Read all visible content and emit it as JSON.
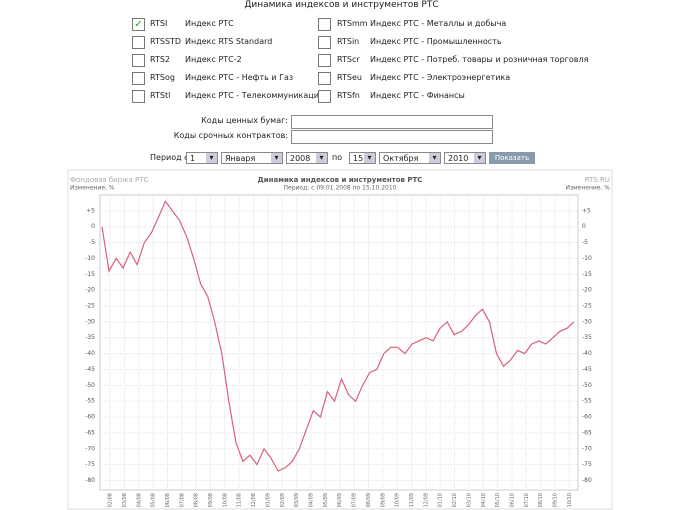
{
  "header": {
    "title": "Динамика индексов и инструментов РТС"
  },
  "form": {
    "checkboxes": [
      {
        "code": "RTSI",
        "name": "Индекс РТС",
        "checked": true
      },
      {
        "code": "RTSSTD",
        "name": "Индекс RTS Standard",
        "checked": false
      },
      {
        "code": "RTS2",
        "name": "Индекс РТС-2",
        "checked": false
      },
      {
        "code": "RTSog",
        "name": "Индекс РТС - Нефть и Газ",
        "checked": false
      },
      {
        "code": "RTStl",
        "name": "Индекс РТС - Телекоммуникации",
        "checked": false
      },
      {
        "code": "RTSmm",
        "name": "Индекс РТС - Металлы и добыча",
        "checked": false
      },
      {
        "code": "RTSin",
        "name": "Индекс РТС - Промышленность",
        "checked": false
      },
      {
        "code": "RTScr",
        "name": "Индекс РТС - Потреб. товары и розничная торговля",
        "checked": false
      },
      {
        "code": "RTSeu",
        "name": "Индекс РТС - Электроэнергетика",
        "checked": false
      },
      {
        "code": "RTSfn",
        "name": "Индекс РТС - Финансы",
        "checked": false
      }
    ],
    "securities_label": "Коды ценных бумаг:",
    "contracts_label": "Коды срочных контрактов:",
    "period_label": "Период с",
    "from": {
      "day": "1",
      "month": "Января",
      "year": "2008"
    },
    "to_label": "по",
    "to": {
      "day": "15",
      "month": "Октября",
      "year": "2010"
    },
    "button": "Показать"
  },
  "chart_data": {
    "type": "line",
    "source": "Фондовая биржа РТС",
    "title": "Динамика индексов и инструментов РТС",
    "site": "RTS.RU",
    "y_label": "Изменение, %",
    "subtitle": "Период: с 09.01.2008 по 15.10.2010",
    "ylim": [
      -83,
      10
    ],
    "yticks": [
      {
        "value": 5,
        "label": "+5"
      },
      0,
      -5,
      -10,
      -15,
      -20,
      -25,
      -30,
      -35,
      -40,
      -45,
      -50,
      -55,
      -60,
      -65,
      -70,
      -75,
      -80
    ],
    "month_labels": [
      "02/08",
      "03/08",
      "04/08",
      "05/08",
      "06/08",
      "07/08",
      "08/08",
      "09/08",
      "10/08",
      "11/08",
      "12/08",
      "01/09",
      "02/09",
      "03/09",
      "04/09",
      "05/09",
      "06/09",
      "07/09",
      "08/09",
      "09/09",
      "10/09",
      "11/09",
      "12/09",
      "01/10",
      "02/10",
      "03/10",
      "04/10",
      "05/10",
      "06/10",
      "07/10",
      "08/10",
      "09/10",
      "10/10"
    ],
    "grid": true,
    "series": [
      {
        "name": "RTSI",
        "color": "#d9607a",
        "values": [
          0,
          -14,
          -10,
          -13,
          -8,
          -12,
          -5,
          -2,
          3,
          8,
          5,
          2,
          -3,
          -10,
          -18,
          -22,
          -30,
          -40,
          -55,
          -68,
          -74,
          -72,
          -75,
          -70,
          -73,
          -77,
          -76,
          -74,
          -70,
          -64,
          -58,
          -60,
          -52,
          -55,
          -48,
          -53,
          -55,
          -50,
          -46,
          -45,
          -40,
          -38,
          -38,
          -40,
          -37,
          -36,
          -35,
          -36,
          -32,
          -30,
          -34,
          -33,
          -31,
          -28,
          -26,
          -30,
          -40,
          -44,
          -42,
          -39,
          -40,
          -37,
          -36,
          -37,
          -35,
          -33,
          -32,
          -30
        ]
      }
    ]
  }
}
